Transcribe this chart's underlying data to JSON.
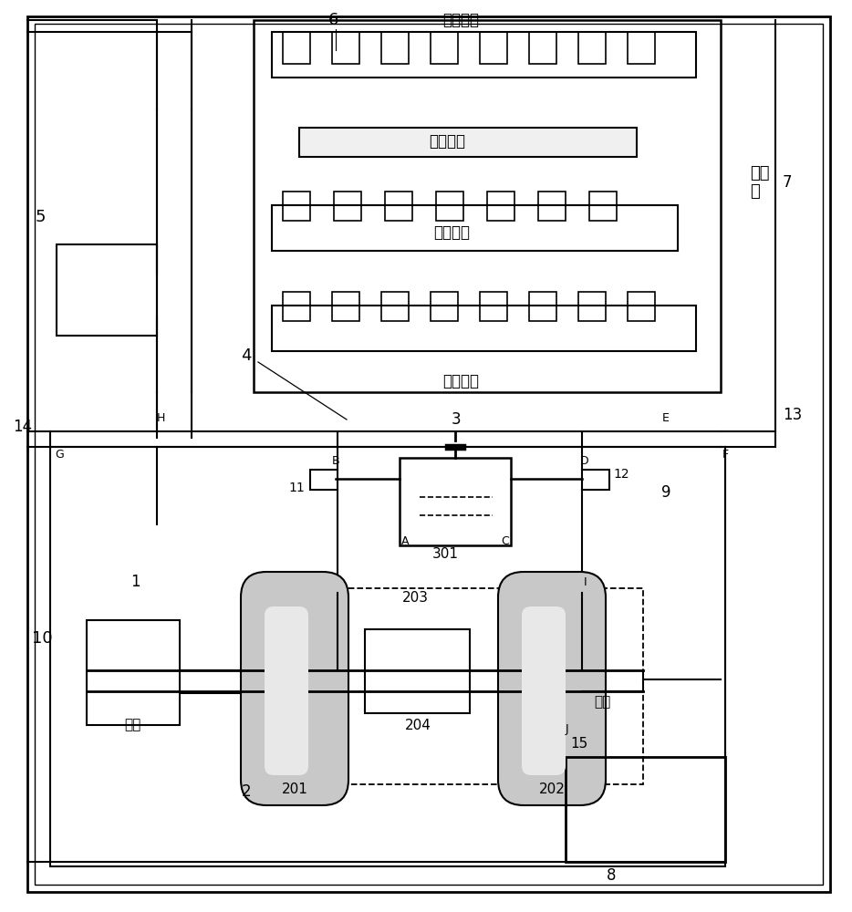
{
  "bg_color": "#ffffff",
  "line_color": "#000000",
  "labels": {
    "engine_label": "发动\n机",
    "exhaust_manifold": "排气歧管",
    "intake_manifold": "进气歧管",
    "intake_label": "进气",
    "exhaust_label": "排气"
  },
  "numbers": {
    "n1": "1",
    "n2": "2",
    "n3": "3",
    "n4": "4",
    "n5": "5",
    "n6": "6",
    "n7": "7",
    "n8": "8",
    "n9": "9",
    "n10": "10",
    "n11": "11",
    "n12": "12",
    "n13": "13",
    "n14": "14",
    "n15": "15",
    "n201": "201",
    "n202": "202",
    "n203": "203",
    "n204": "204",
    "n301": "301"
  },
  "letters": [
    "A",
    "B",
    "C",
    "D",
    "E",
    "F",
    "G",
    "H",
    "I",
    "J"
  ]
}
